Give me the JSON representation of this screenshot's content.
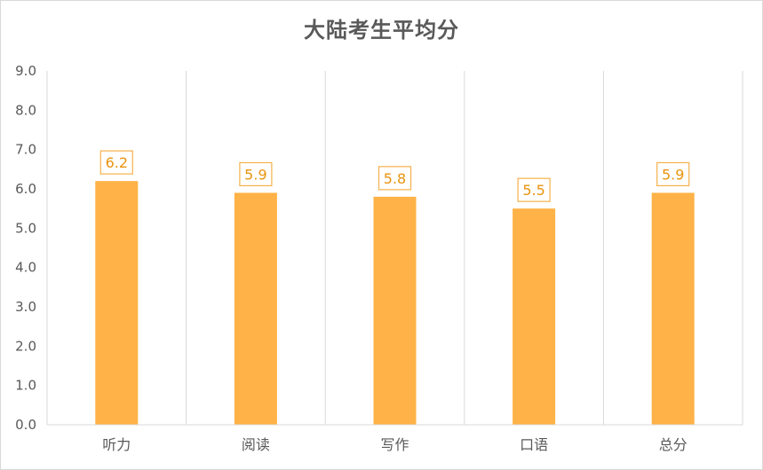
{
  "chart_data": {
    "type": "bar",
    "title": "大陆考生平均分",
    "categories": [
      "听力",
      "阅读",
      "写作",
      "口语",
      "总分"
    ],
    "values": [
      6.2,
      5.9,
      5.8,
      5.5,
      5.9
    ],
    "data_labels": [
      "6.2",
      "5.9",
      "5.8",
      "5.5",
      "5.9"
    ],
    "yticks": [
      "0.0",
      "1.0",
      "2.0",
      "3.0",
      "4.0",
      "5.0",
      "6.0",
      "7.0",
      "8.0",
      "9.0"
    ],
    "ylim": [
      0,
      9
    ],
    "grid": "vertical separators",
    "legend": "none",
    "colors": {
      "bar": "#ffb247",
      "label_text": "#e8940f",
      "label_border": "#f5b14b",
      "axis_text": "#595959",
      "grid": "#d9d9d9"
    }
  }
}
